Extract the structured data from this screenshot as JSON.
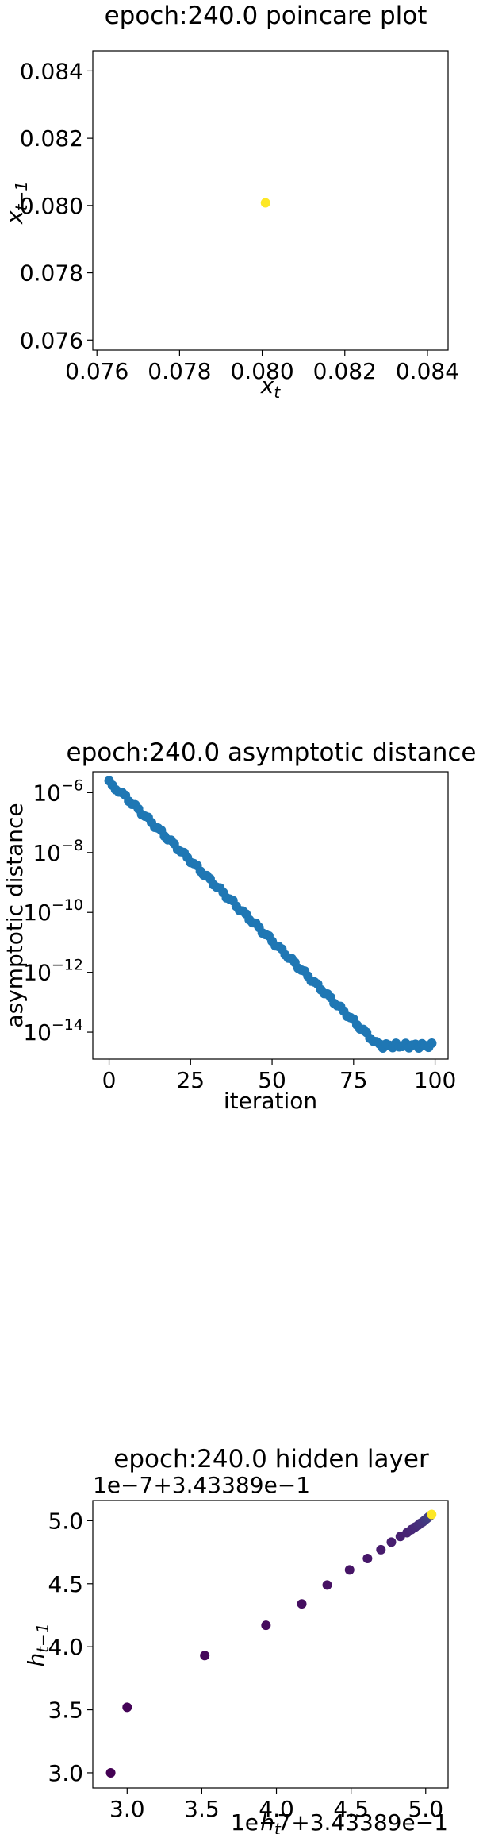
{
  "chart_data": [
    {
      "type": "scatter",
      "title": "epoch:240.0 poincare plot",
      "xlabel": "x_t",
      "ylabel": "x_{t-1}",
      "xlim": [
        0.0759,
        0.0845
      ],
      "ylim": [
        0.0757,
        0.0846
      ],
      "xticks": [
        "0.076",
        "0.078",
        "0.080",
        "0.082",
        "0.084"
      ],
      "yticks": [
        "0.084",
        "0.082",
        "0.080",
        "0.078",
        "0.076"
      ],
      "points": [
        {
          "x": 0.08008,
          "y": 0.08008
        }
      ],
      "color": "#fde725"
    },
    {
      "type": "scatter",
      "title": "epoch:240.0 asymptotic distance",
      "xlabel": "iteration",
      "ylabel": "asymptotic distance",
      "yscale": "log",
      "xlim": [
        -5,
        104
      ],
      "ylim_exp": [
        -14.9,
        -5.3
      ],
      "xticks": [
        "0",
        "25",
        "50",
        "75",
        "100"
      ],
      "yticks": [
        "10^-6",
        "10^-8",
        "10^-10",
        "10^-12",
        "10^-14"
      ],
      "color": "#1f77b4",
      "log_start": -5.6,
      "log_floor": -14.4,
      "slope": -0.107
    },
    {
      "type": "scatter",
      "title": "epoch:240.0 hidden layer",
      "xlabel": "h_t",
      "ylabel": "h_{t-1}",
      "offset_text": "1e−7+3.43389e−1",
      "xlim": [
        2.77,
        5.15
      ],
      "ylim": [
        2.88,
        5.16
      ],
      "xticks": [
        "3.0",
        "3.5",
        "4.0",
        "4.5",
        "5.0"
      ],
      "yticks": [
        "5.0",
        "4.5",
        "4.0",
        "3.5",
        "3.0"
      ],
      "points": [
        {
          "x": 2.89,
          "y": 3.0
        },
        {
          "x": 3.0,
          "y": 3.52
        },
        {
          "x": 3.52,
          "y": 3.93
        },
        {
          "x": 3.93,
          "y": 4.17
        },
        {
          "x": 4.17,
          "y": 4.34
        },
        {
          "x": 4.34,
          "y": 4.49
        },
        {
          "x": 4.49,
          "y": 4.61
        },
        {
          "x": 4.61,
          "y": 4.7
        },
        {
          "x": 4.7,
          "y": 4.77
        },
        {
          "x": 4.77,
          "y": 4.83
        },
        {
          "x": 4.83,
          "y": 4.875
        },
        {
          "x": 4.875,
          "y": 4.905
        },
        {
          "x": 4.905,
          "y": 4.93
        },
        {
          "x": 4.93,
          "y": 4.95
        },
        {
          "x": 4.95,
          "y": 4.965
        },
        {
          "x": 4.965,
          "y": 4.98
        },
        {
          "x": 4.98,
          "y": 4.99
        },
        {
          "x": 4.99,
          "y": 5.0
        },
        {
          "x": 5.0,
          "y": 5.01
        },
        {
          "x": 5.01,
          "y": 5.02
        },
        {
          "x": 5.02,
          "y": 5.03
        },
        {
          "x": 5.03,
          "y": 5.04
        },
        {
          "x": 5.04,
          "y": 5.05
        }
      ],
      "colormap": "viridis"
    }
  ]
}
